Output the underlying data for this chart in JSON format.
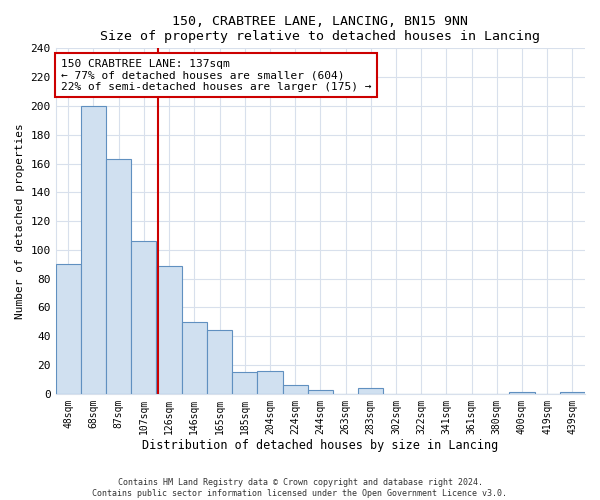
{
  "title": "150, CRABTREE LANE, LANCING, BN15 9NN",
  "subtitle": "Size of property relative to detached houses in Lancing",
  "xlabel": "Distribution of detached houses by size in Lancing",
  "ylabel": "Number of detached properties",
  "bar_labels": [
    "48sqm",
    "68sqm",
    "87sqm",
    "107sqm",
    "126sqm",
    "146sqm",
    "165sqm",
    "185sqm",
    "204sqm",
    "224sqm",
    "244sqm",
    "263sqm",
    "283sqm",
    "302sqm",
    "322sqm",
    "341sqm",
    "361sqm",
    "380sqm",
    "400sqm",
    "419sqm",
    "439sqm"
  ],
  "bar_values": [
    90,
    200,
    163,
    106,
    89,
    50,
    44,
    15,
    16,
    6,
    3,
    0,
    4,
    0,
    0,
    0,
    0,
    0,
    1,
    0,
    1
  ],
  "bar_color": "#d0e0f0",
  "bar_edge_color": "#6090c0",
  "vline_color": "#cc0000",
  "annotation_title": "150 CRABTREE LANE: 137sqm",
  "annotation_line1": "← 77% of detached houses are smaller (604)",
  "annotation_line2": "22% of semi-detached houses are larger (175) →",
  "annotation_box_color": "white",
  "annotation_box_edge": "#cc0000",
  "ylim": [
    0,
    240
  ],
  "yticks": [
    0,
    20,
    40,
    60,
    80,
    100,
    120,
    140,
    160,
    180,
    200,
    220,
    240
  ],
  "footer_line1": "Contains HM Land Registry data © Crown copyright and database right 2024.",
  "footer_line2": "Contains public sector information licensed under the Open Government Licence v3.0.",
  "background_color": "#ffffff",
  "grid_color": "#d8e0ec"
}
